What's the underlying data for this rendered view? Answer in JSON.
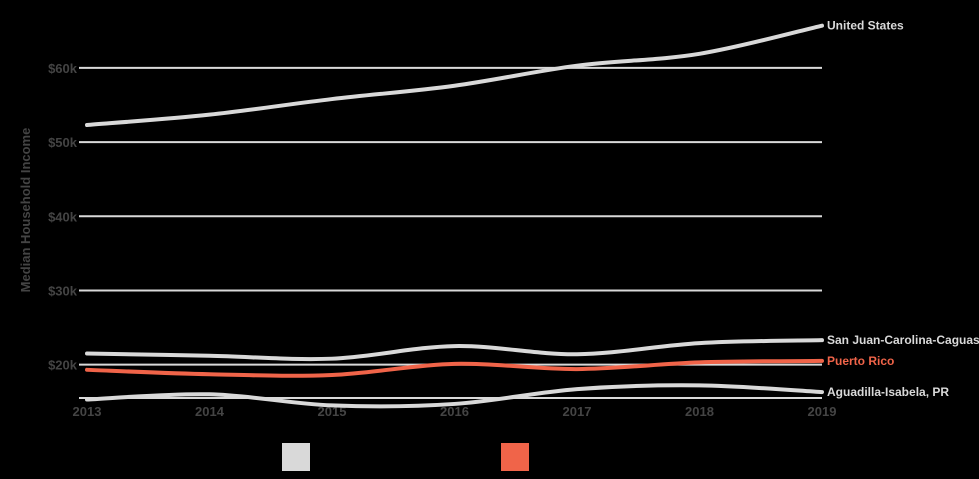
{
  "chart_data": {
    "type": "line",
    "ylabel": "Median Household Income",
    "xlabel": "",
    "x": [
      2013,
      2014,
      2015,
      2016,
      2017,
      2018,
      2019
    ],
    "xlim": [
      2013,
      2019
    ],
    "ylim": [
      15500,
      67000
    ],
    "yticks": [
      20000,
      30000,
      40000,
      50000,
      60000
    ],
    "ytick_labels": [
      "$20k",
      "$30k",
      "$40k",
      "$50k",
      "$60k"
    ],
    "grid": true,
    "legend": "bottom-center",
    "series": [
      {
        "name": "United States",
        "color": "#d9d9d9",
        "values": [
          52300,
          53700,
          55800,
          57600,
          60300,
          61900,
          65700
        ]
      },
      {
        "name": "San Juan-Carolina-Caguas, PR",
        "color": "#d9d9d9",
        "values": [
          21500,
          21200,
          20800,
          22500,
          21400,
          22900,
          23300
        ]
      },
      {
        "name": "Puerto Rico",
        "color": "#f06449",
        "values": [
          19300,
          18700,
          18600,
          20100,
          19400,
          20300,
          20500
        ]
      },
      {
        "name": "Aguadilla-Isabela, PR",
        "color": "#d9d9d9",
        "values": [
          15300,
          16000,
          14500,
          14700,
          16700,
          17200,
          16300
        ]
      }
    ],
    "legend_swatches": [
      {
        "color": "#d9d9d9"
      },
      {
        "color": "#f06449"
      }
    ]
  }
}
